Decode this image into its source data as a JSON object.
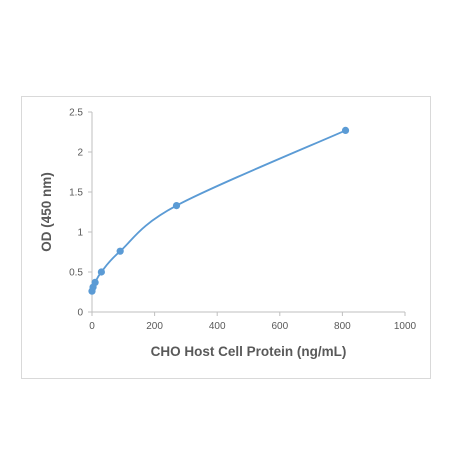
{
  "chart_data": {
    "type": "scatter",
    "title": "",
    "xlabel": "CHO Host Cell Protein (ng/mL)",
    "ylabel": "OD (450 nm)",
    "xlim": [
      0,
      1000
    ],
    "ylim": [
      0,
      2.5
    ],
    "x_ticks": [
      0,
      200,
      400,
      600,
      800,
      1000
    ],
    "y_ticks": [
      0,
      0.5,
      1,
      1.5,
      2,
      2.5
    ],
    "x_tick_labels": [
      "0",
      "200",
      "400",
      "600",
      "800",
      "1000"
    ],
    "y_tick_labels": [
      "0",
      "0.5",
      "1",
      "1.5",
      "2",
      "2.5"
    ],
    "grid": false,
    "legend": "none",
    "line_style": "smooth",
    "marker": "circle",
    "color": "#5b9bd5",
    "series": [
      {
        "x": [
          0,
          3.4,
          10,
          30,
          90,
          270,
          810
        ],
        "y": [
          0.26,
          0.31,
          0.37,
          0.5,
          0.76,
          1.33,
          2.27
        ]
      }
    ]
  }
}
